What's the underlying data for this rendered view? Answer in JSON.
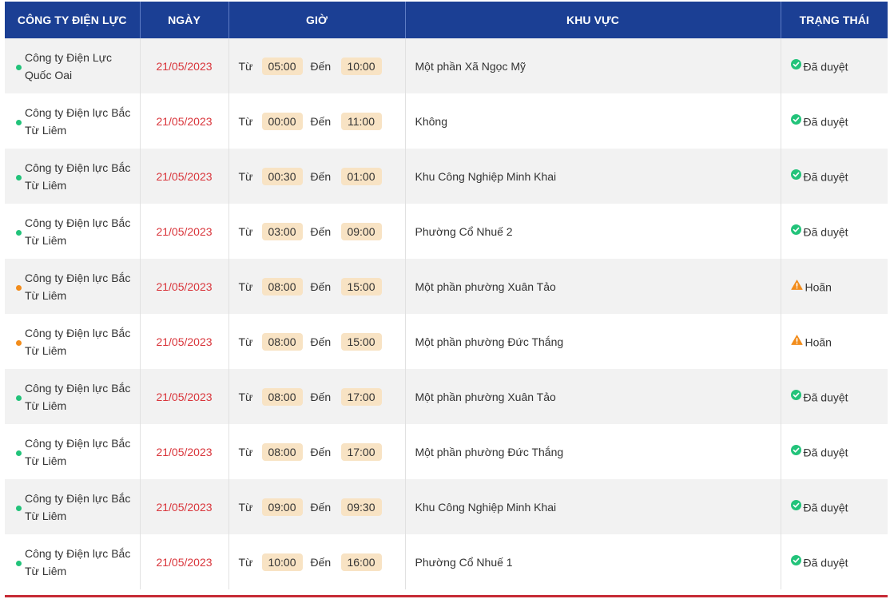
{
  "table": {
    "headers": {
      "company": "CÔNG TY ĐIỆN LỰC",
      "date": "NGÀY",
      "time": "GIỜ",
      "area": "KHU VỰC",
      "status": "TRẠNG THÁI"
    },
    "from_word": "Từ",
    "to_word": "Đến",
    "status_colors": {
      "approved": "#22c37a",
      "postponed": "#f28c1b"
    },
    "date_color": "#d9353b",
    "header_bg": "#1b3f94",
    "rows": [
      {
        "company_line1": "Công ty Điện Lực",
        "company_line2": "Quốc Oai",
        "date": "21/05/2023",
        "from": "05:00",
        "to": "10:00",
        "area": "Một phần Xã Ngọc Mỹ",
        "status": "Đã duyệt",
        "status_type": "approved",
        "icon": "check-circle-icon"
      },
      {
        "company_line1": "Công ty Điện lực Bắc",
        "company_line2": "Từ Liêm",
        "date": "21/05/2023",
        "from": "00:00",
        "to": "11:00",
        "area": "Không",
        "status": "Đã duyệt",
        "status_type": "approved",
        "icon": "check-circle-icon"
      },
      {
        "company_line1": "Công ty Điện lực Bắc",
        "company_line2": "Từ Liêm",
        "date": "21/05/2023",
        "from": "00:30",
        "to": "01:00",
        "area": "Khu Công Nghiệp Minh Khai",
        "status": "Đã duyệt",
        "status_type": "approved",
        "icon": "check-circle-icon"
      },
      {
        "company_line1": "Công ty Điện lực Bắc",
        "company_line2": "Từ Liêm",
        "date": "21/05/2023",
        "from": "03:00",
        "to": "09:00",
        "area": "Phường Cổ Nhuế 2",
        "status": "Đã duyệt",
        "status_type": "approved",
        "icon": "check-circle-icon"
      },
      {
        "company_line1": "Công ty Điện lực Bắc",
        "company_line2": "Từ Liêm",
        "date": "21/05/2023",
        "from": "08:00",
        "to": "15:00",
        "area": "Một phần phường Xuân Tảo",
        "status": "Hoãn",
        "status_type": "postponed",
        "icon": "warning-triangle-icon"
      },
      {
        "company_line1": "Công ty Điện lực Bắc",
        "company_line2": "Từ Liêm",
        "date": "21/05/2023",
        "from": "08:00",
        "to": "15:00",
        "area": "Một phần phường Đức Thắng",
        "status": "Hoãn",
        "status_type": "postponed",
        "icon": "warning-triangle-icon"
      },
      {
        "company_line1": "Công ty Điện lực Bắc",
        "company_line2": "Từ Liêm",
        "date": "21/05/2023",
        "from": "08:00",
        "to": "17:00",
        "area": "Một phần phường Xuân Tảo",
        "status": "Đã duyệt",
        "status_type": "approved",
        "icon": "check-circle-icon"
      },
      {
        "company_line1": "Công ty Điện lực Bắc",
        "company_line2": "Từ Liêm",
        "date": "21/05/2023",
        "from": "08:00",
        "to": "17:00",
        "area": "Một phần phường Đức Thắng",
        "status": "Đã duyệt",
        "status_type": "approved",
        "icon": "check-circle-icon"
      },
      {
        "company_line1": "Công ty Điện lực Bắc",
        "company_line2": "Từ Liêm",
        "date": "21/05/2023",
        "from": "09:00",
        "to": "09:30",
        "area": "Khu Công Nghiệp Minh Khai",
        "status": "Đã duyệt",
        "status_type": "approved",
        "icon": "check-circle-icon"
      },
      {
        "company_line1": "Công ty Điện lực Bắc",
        "company_line2": "Từ Liêm",
        "date": "21/05/2023",
        "from": "10:00",
        "to": "16:00",
        "area": "Phường Cổ Nhuế 1",
        "status": "Đã duyệt",
        "status_type": "approved",
        "icon": "check-circle-icon"
      }
    ]
  }
}
